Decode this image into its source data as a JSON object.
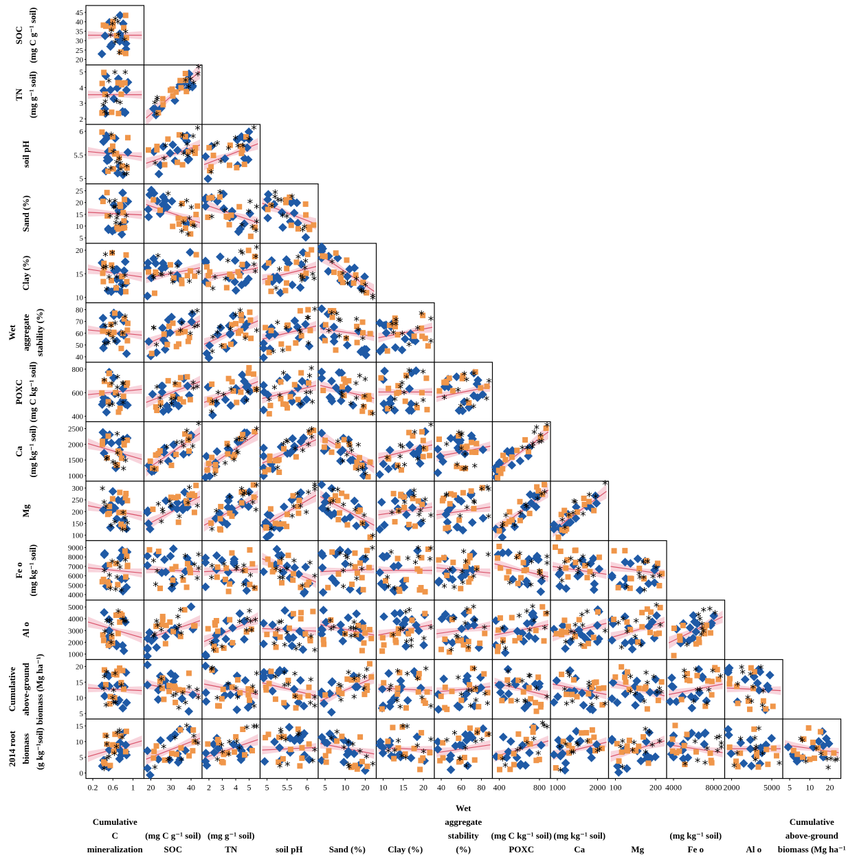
{
  "chart_data": {
    "type": "scatter",
    "layout": "lower-triangle scatterplot matrix with linear fit and confidence band",
    "colors": {
      "blue": "#1f5aa6",
      "orange": "#f0964a",
      "black": "#000000",
      "fit": "#d9536a",
      "band": "#f6c9d3"
    },
    "variables": [
      {
        "id": "cum_c",
        "xlabel": [
          "Cumulative",
          "C",
          "mineralization"
        ],
        "xticks": [
          "0.2",
          "0.6",
          "1"
        ]
      },
      {
        "id": "soc",
        "ylabel": [
          "SOC",
          "(mg C g⁻¹ soil)"
        ],
        "yticks": [
          "45",
          "40",
          "35",
          "30",
          "25",
          "20"
        ],
        "xlabel": [
          "(mg C g⁻¹ soil)",
          "SOC"
        ],
        "xticks": [
          "20",
          "30",
          "40"
        ]
      },
      {
        "id": "tn",
        "ylabel": [
          "TN",
          "(mg g⁻¹ soil)"
        ],
        "yticks": [
          "5",
          "4",
          "3",
          "2"
        ],
        "xlabel": [
          "(mg g⁻¹ soil)",
          "TN"
        ],
        "xticks": [
          "2",
          "3",
          "4",
          "5"
        ]
      },
      {
        "id": "ph",
        "ylabel": [
          "soil pH"
        ],
        "yticks": [
          "6",
          "5.5",
          "5"
        ],
        "xlabel": [
          "soil pH"
        ],
        "xticks": [
          "5",
          "5.5",
          "6"
        ]
      },
      {
        "id": "sand",
        "ylabel": [
          "Sand (%)"
        ],
        "yticks": [
          "25",
          "20",
          "15",
          "10",
          "5"
        ],
        "xlabel": [
          "Sand (%)"
        ],
        "xticks": [
          "5",
          "10",
          "20"
        ]
      },
      {
        "id": "clay",
        "ylabel": [
          "Clay (%)"
        ],
        "yticks": [
          "20",
          "15",
          "10"
        ],
        "xlabel": [
          "Clay (%)"
        ],
        "xticks": [
          "10",
          "15",
          "20"
        ]
      },
      {
        "id": "was",
        "ylabel": [
          "Wet",
          "aggregate",
          "stability (%)"
        ],
        "yticks": [
          "80",
          "70",
          "60",
          "50",
          "40"
        ],
        "xlabel": [
          "Wet",
          "aggregate",
          "stability",
          "(%)"
        ],
        "xticks": [
          "40",
          "60",
          "80"
        ]
      },
      {
        "id": "poxc",
        "ylabel": [
          "POXC",
          "(mg C kg⁻¹ soil)"
        ],
        "yticks": [
          "800",
          "600",
          "400"
        ],
        "xlabel": [
          "(mg C kg⁻¹ soil)",
          "POXC"
        ],
        "xticks": [
          "400",
          "800"
        ]
      },
      {
        "id": "ca",
        "ylabel": [
          "Ca",
          "(mg kg⁻¹ soil)"
        ],
        "yticks": [
          "2500",
          "2000",
          "1500",
          "1000"
        ],
        "xlabel": [
          "(mg kg⁻¹ soil)",
          "Ca"
        ],
        "xticks": [
          "1000",
          "2000"
        ]
      },
      {
        "id": "mg",
        "ylabel": [
          "Mg"
        ],
        "yticks": [
          "300",
          "250",
          "200",
          "150",
          "100"
        ],
        "xlabel": [
          "Mg"
        ],
        "xticks": [
          "100",
          "200"
        ]
      },
      {
        "id": "fe",
        "ylabel": [
          "Fe o",
          "(mg kg⁻¹ soil)"
        ],
        "yticks": [
          "9000",
          "8000",
          "7000",
          "6000",
          "5000",
          "4000"
        ],
        "xlabel": [
          "(mg kg⁻¹ soil)",
          "Fe o"
        ],
        "xticks": [
          "4000",
          "8000"
        ]
      },
      {
        "id": "al",
        "ylabel": [
          "Al o"
        ],
        "yticks": [
          "5000",
          "4000",
          "3000",
          "2000",
          "1000"
        ],
        "xlabel": [
          "Al o"
        ],
        "xticks": [
          "2000",
          "5000"
        ]
      },
      {
        "id": "agb",
        "ylabel": [
          "Cumulative",
          "above-ground",
          "biomass (Mg ha⁻¹)"
        ],
        "yticks": [
          "20",
          "15",
          "10",
          "5"
        ],
        "xlabel": [
          "Cumulative",
          "above-ground",
          "biomass (Mg ha⁻¹"
        ],
        "xticks": [
          "5",
          "10",
          "20"
        ]
      },
      {
        "id": "root",
        "ylabel": [
          "2014 root",
          "biomass",
          "(g kg⁻¹soil)"
        ],
        "yticks": [
          "15",
          "10",
          "5",
          "0"
        ]
      }
    ]
  }
}
